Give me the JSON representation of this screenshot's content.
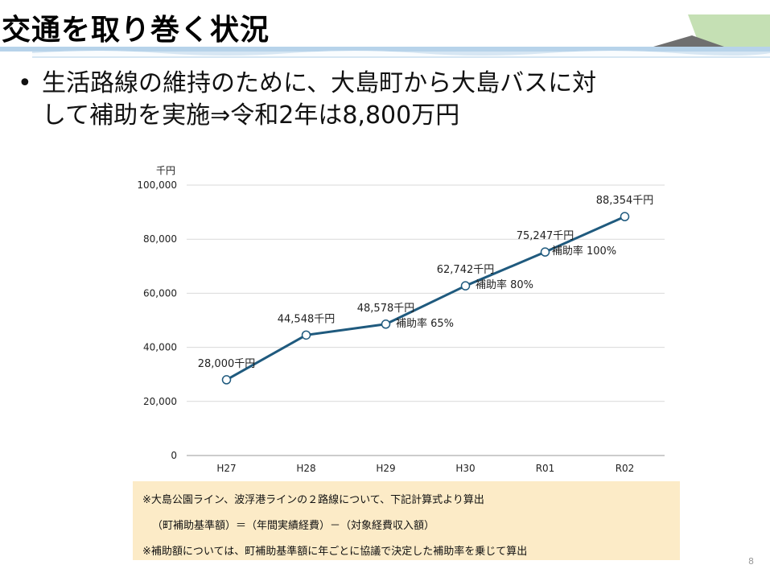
{
  "slide": {
    "title": "交通を取り巻く状況",
    "bullet_marker": "•",
    "bullet_line1": "生活路線の維持のために、大島町から大島バスに対",
    "bullet_line2": "して補助を実施⇒令和2年は8,800万円",
    "page_number": "8"
  },
  "colors": {
    "line": "#1f5a7e",
    "header_band": "#b7d3ea",
    "header_green": "#c5e0b4",
    "note_bg": "#fcebc7"
  },
  "chart_data": {
    "type": "line",
    "unit_label": "千円",
    "categories": [
      "H27",
      "H28",
      "H29",
      "H30",
      "R01",
      "R02"
    ],
    "values": [
      28000,
      44548,
      48578,
      62742,
      75247,
      88354
    ],
    "value_labels": [
      "28,000千円",
      "44,548千円",
      "48,578千円",
      "62,742千円",
      "75,247千円",
      "88,354千円"
    ],
    "yticks": [
      "0",
      "20,000",
      "40,000",
      "60,000",
      "80,000",
      "100,000"
    ],
    "ylim": [
      0,
      100000
    ],
    "grid": true,
    "annotations": [
      {
        "text": "補助率 65%",
        "x": "H29"
      },
      {
        "text": "補助率 80%",
        "x": "H30"
      },
      {
        "text": "補助率 100%",
        "x": "R01"
      }
    ]
  },
  "note": {
    "line1": "※大島公園ライン、波浮港ラインの２路線について、下記計算式より算出",
    "line2": "（町補助基準額）＝（年間実績経費）－（対象経費収入額）",
    "line3": "※補助額については、町補助基準額に年ごとに協議で決定した補助率を乗じて算出"
  }
}
